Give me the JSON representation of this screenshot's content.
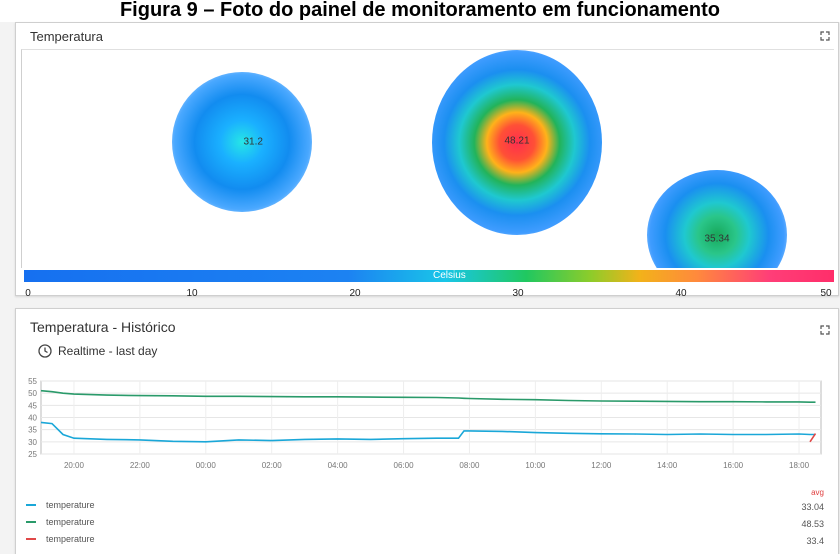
{
  "caption": "Figura 9 – Foto do painel de monitoramento em funcionamento",
  "heatmap_panel": {
    "title": "Temperatura",
    "points": [
      {
        "label": "31.2",
        "value": 31.2
      },
      {
        "label": "48.21",
        "value": 48.21
      },
      {
        "label": "35.34",
        "value": 35.34
      }
    ],
    "legend": {
      "title": "Celsius",
      "ticks": [
        "0",
        "10",
        "20",
        "30",
        "40",
        "50"
      ],
      "range": [
        0,
        50
      ]
    }
  },
  "history_panel": {
    "title": "Temperatura - Histórico",
    "timewindow": "Realtime - last day",
    "avg_header": "avg",
    "legend": [
      {
        "label": "temperature",
        "color": "#1aa7d8",
        "avg": "33.04"
      },
      {
        "label": "temperature",
        "color": "#2a9a6a",
        "avg": "48.53"
      },
      {
        "label": "temperature",
        "color": "#e04848",
        "avg": "33.4"
      }
    ]
  },
  "chart_data": {
    "type": "line",
    "xlabel": "",
    "ylabel": "",
    "x_ticks": [
      "20:00",
      "22:00",
      "00:00",
      "02:00",
      "04:00",
      "06:00",
      "08:00",
      "10:00",
      "12:00",
      "14:00",
      "16:00",
      "18:00"
    ],
    "y_ticks": [
      "55",
      "50",
      "45",
      "40",
      "35",
      "30",
      "25"
    ],
    "ylim": [
      25,
      55
    ],
    "grid": true,
    "x": [
      "19:00",
      "19:20",
      "19:40",
      "20:00",
      "21:00",
      "22:00",
      "23:00",
      "00:00",
      "01:00",
      "02:00",
      "03:00",
      "04:00",
      "05:00",
      "06:00",
      "07:00",
      "07:40",
      "07:50",
      "08:00",
      "09:00",
      "10:00",
      "11:00",
      "12:00",
      "13:00",
      "14:00",
      "15:00",
      "16:00",
      "17:00",
      "18:00",
      "18:20",
      "18:30"
    ],
    "series": [
      {
        "name": "temperature",
        "color": "#1aa7d8",
        "values": [
          38,
          37.5,
          33,
          31.5,
          31,
          30.8,
          30.2,
          30,
          30.8,
          30.5,
          31,
          31.2,
          31,
          31.3,
          31.5,
          31.5,
          34.5,
          34.5,
          34.3,
          33.8,
          33.5,
          33.3,
          33.2,
          33,
          33.2,
          33,
          33,
          33.2,
          33,
          33
        ]
      },
      {
        "name": "temperature",
        "color": "#2a9a6a",
        "values": [
          51,
          50.6,
          50,
          49.6,
          49.2,
          49,
          48.9,
          48.7,
          48.7,
          48.6,
          48.5,
          48.5,
          48.4,
          48.3,
          48.2,
          48,
          47.9,
          47.8,
          47.5,
          47.3,
          47,
          46.8,
          46.7,
          46.6,
          46.5,
          46.5,
          46.4,
          46.4,
          46.3,
          46.3
        ]
      },
      {
        "name": "temperature",
        "color": "#e04848",
        "values": [
          null,
          null,
          null,
          null,
          null,
          null,
          null,
          null,
          null,
          null,
          null,
          null,
          null,
          null,
          null,
          null,
          null,
          null,
          null,
          null,
          null,
          null,
          null,
          null,
          null,
          null,
          null,
          null,
          30,
          33.4
        ]
      }
    ]
  }
}
